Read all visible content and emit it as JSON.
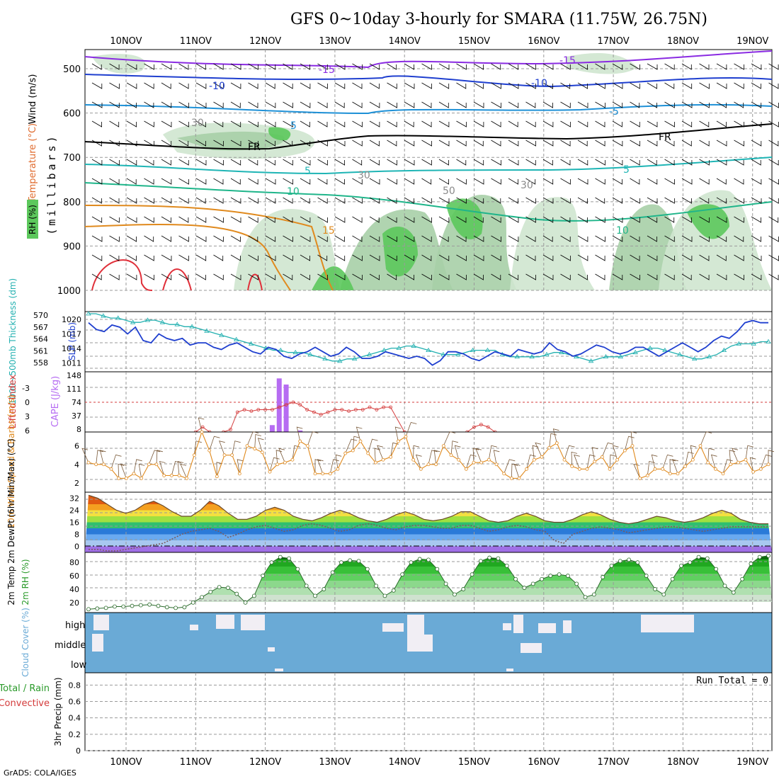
{
  "title": "GFS 0~10day 3-hourly for SMARA (11.75W, 26.75N)",
  "credit": "GrADS: COLA/IGES",
  "colors": {
    "grid": "#9a9a9a",
    "rh_fill": "#5cc85c",
    "slp": "#1f3fcf",
    "thickness": "#22b0b0",
    "lifted": "#d43b3b",
    "cape": "#b66cf2",
    "wind": "#e08a1e",
    "cloud": "#6aaad6",
    "cloud_gap": "#f1eef4"
  },
  "chart_data": [
    {
      "id": "upper",
      "type": "contour",
      "x": [
        "10NOV",
        "11NOV",
        "12NOV",
        "13NOV",
        "14NOV",
        "15NOV",
        "16NOV",
        "17NOV",
        "18NOV",
        "19NOV"
      ],
      "ylabel": "(millibars)",
      "y_ticks": [
        "500",
        "600",
        "700",
        "800",
        "900",
        "1000"
      ],
      "legend": [
        "Wind (m/s)",
        "Temperature (°C)",
        "RH (%)"
      ],
      "contour_labels": [
        "-15",
        "-15",
        "-10",
        "-10",
        "-5",
        "-5",
        "FR",
        "FR",
        "5",
        "5",
        "10",
        "10",
        "15",
        "30",
        "30",
        "30",
        "50"
      ]
    },
    {
      "id": "slp",
      "type": "line",
      "ylabel_left": "1000~500mb Thickness (dm)",
      "ylabel_right": "SLP (mb)",
      "y_ticks_left": [
        "570",
        "567",
        "564",
        "561",
        "558"
      ],
      "y_ticks_right": [
        "1020",
        "1017",
        "1014",
        "1011"
      ],
      "series": [
        {
          "name": "SLP",
          "ylim": [
            1009.5,
            1023
          ],
          "values": [
            1020.5,
            1019,
            1018.5,
            1020,
            1019.5,
            1018,
            1019.5,
            1016.5,
            1016,
            1018,
            1017,
            1016.5,
            1017,
            1015.5,
            1016,
            1016,
            1015,
            1014.5,
            1015.5,
            1016,
            1015,
            1014,
            1013.5,
            1015,
            1014.5,
            1013,
            1012.5,
            1013.5,
            1014,
            1015,
            1014,
            1013,
            1013.5,
            1015,
            1014,
            1012.5,
            1012.5,
            1013,
            1014,
            1013.5,
            1013,
            1012.5,
            1013,
            1012.5,
            1011,
            1012,
            1014,
            1014,
            1013.5,
            1012.5,
            1012,
            1013,
            1014,
            1013.5,
            1013,
            1014.5,
            1014,
            1013.5,
            1014,
            1016,
            1014.5,
            1014,
            1013,
            1013.5,
            1014.5,
            1015.5,
            1015,
            1014,
            1013.5,
            1014,
            1015,
            1015,
            1014,
            1013,
            1014,
            1015,
            1016,
            1015,
            1014,
            1015,
            1016.5,
            1017.5,
            1017,
            1018.5,
            1020.5,
            1021,
            1020.5,
            1020.5
          ]
        },
        {
          "name": "Thickness",
          "ylim": [
            557,
            571
          ],
          "values": [
            570.5,
            570.5,
            570,
            569.5,
            569.5,
            569,
            568.5,
            568.5,
            569,
            569,
            568.5,
            568,
            568,
            567.5,
            567.5,
            567,
            566.5,
            566,
            565.5,
            565,
            564.5,
            564,
            563.5,
            563,
            562.5,
            562,
            562,
            561.5,
            561.5,
            561.5,
            561,
            560.5,
            560,
            559.5,
            559.5,
            560,
            560,
            560.5,
            561,
            561.5,
            562,
            562.5,
            562.5,
            563,
            563,
            562.5,
            562,
            561.5,
            561,
            561,
            561,
            561.5,
            562,
            562,
            562,
            562,
            561,
            560.5,
            560.5,
            560.5,
            560.5,
            560.5,
            561,
            561.5,
            561.5,
            561,
            560.5,
            560,
            559.5,
            560,
            560.5,
            560.5,
            560.5,
            561,
            561.5,
            562,
            562.5,
            562.5,
            562,
            561.5,
            561,
            560.5,
            560,
            560,
            560.5,
            561,
            562,
            563,
            563.5,
            563.5,
            563.5,
            564,
            564
          ]
        }
      ]
    },
    {
      "id": "cape",
      "type": "bar+line",
      "ylabel_left": "Lifted Index",
      "ylabel_right": "CAPE (J/kg)",
      "y_ticks_left": [
        "-3",
        "0",
        "3",
        "6"
      ],
      "y_ticks_right": [
        "148",
        "111",
        "74",
        "37",
        "8"
      ],
      "cape_bars": {
        "ylim": [
          0,
          148
        ],
        "x_days": [
          2.1,
          2.2,
          2.3,
          2.5
        ],
        "values": [
          18,
          140,
          124,
          4
        ]
      },
      "lifted_index": {
        "ylim": [
          -6,
          6
        ],
        "x_days": [
          1.0,
          1.1,
          1.2,
          1.4,
          1.5,
          1.6,
          1.7,
          1.8,
          1.9,
          2.0,
          2.1,
          2.2,
          2.3,
          2.4,
          2.5,
          2.6,
          2.7,
          2.8,
          2.9,
          3.0,
          3.1,
          3.2,
          3.3,
          3.4,
          3.5,
          3.6,
          3.7,
          3.8,
          4.0,
          4.9,
          5.0,
          5.1,
          5.2,
          5.3
        ],
        "values": [
          6,
          5,
          6,
          6,
          5.5,
          2,
          1.5,
          1.8,
          1.5,
          1.5,
          1.5,
          1,
          0.5,
          0,
          0.5,
          1.5,
          2,
          2.5,
          2,
          1.5,
          1.5,
          1.8,
          1.5,
          1.5,
          1,
          1.5,
          1,
          1,
          6,
          6,
          5,
          4.5,
          5,
          6
        ]
      }
    },
    {
      "id": "wind10m",
      "type": "line",
      "ylabel": "10m Wind Speed & Barbs (m/s)",
      "y_ticks": [
        "2",
        "4",
        "6"
      ],
      "ylim": [
        1,
        7.5
      ],
      "values": [
        4.2,
        4,
        4,
        3.5,
        2.5,
        2.5,
        3,
        2.5,
        4,
        4,
        2.8,
        2.8,
        2.8,
        2.5,
        5,
        7.5,
        5.5,
        2.7,
        5,
        5,
        3,
        6,
        5.7,
        5.3,
        3.2,
        4,
        4.2,
        4.5,
        6.5,
        6,
        3,
        3,
        3,
        3.5,
        5.2,
        5.5,
        6.5,
        5.2,
        4.2,
        4.5,
        4.8,
        6.5,
        7,
        4.5,
        3.5,
        4,
        4,
        6,
        5,
        4.5,
        3.5,
        4.2,
        4.2,
        4.5,
        4,
        3,
        2.5,
        2.5,
        3.5,
        4.5,
        4.8,
        5.8,
        6.3,
        4.5,
        3.8,
        3.5,
        3.5,
        4.3,
        4.8,
        3.5,
        4.5,
        5.5,
        6,
        2.5,
        2.8,
        3.5,
        3.5,
        3,
        3,
        3.8,
        4.5,
        6,
        4.2,
        3.5,
        3,
        4,
        4.2,
        4.5,
        3.2,
        3.5,
        4
      ]
    },
    {
      "id": "temp",
      "type": "area",
      "ylabel": "2m Temp 2m DewPt (6hr Min/Max) (°C)",
      "y_ticks": [
        "0",
        "8",
        "16",
        "24",
        "32"
      ],
      "ylim": [
        -4,
        36
      ],
      "temp": [
        34,
        32,
        28,
        24,
        22,
        24,
        28,
        30,
        27,
        23,
        20,
        20,
        24,
        30,
        27,
        22,
        18,
        18,
        20,
        24,
        26,
        24,
        20,
        18,
        17,
        19,
        22,
        24,
        22,
        19,
        17,
        16,
        18,
        21,
        23,
        21,
        18,
        17,
        18,
        20,
        23,
        23,
        20,
        17,
        16,
        17,
        20,
        22,
        20,
        17,
        16,
        16,
        18,
        21,
        23,
        21,
        18,
        16,
        15,
        16,
        18,
        20,
        19,
        17,
        16,
        17,
        19,
        22,
        24,
        22,
        18,
        16,
        15,
        15
      ],
      "dewpt": [
        -2,
        -2,
        -3,
        -3,
        -2,
        -1,
        0,
        1,
        2,
        5,
        8,
        10,
        11,
        12,
        10,
        6,
        8,
        11,
        13,
        14,
        12,
        10,
        11,
        14,
        15,
        14,
        12,
        10,
        11,
        14,
        15,
        14,
        12,
        11,
        13,
        14,
        14,
        13,
        12,
        12,
        14,
        14,
        12,
        10,
        11,
        13,
        14,
        13,
        11,
        10,
        4,
        2,
        8,
        10,
        12,
        13,
        12,
        11,
        9,
        10,
        11,
        12,
        13,
        13,
        12,
        11,
        10,
        11,
        12,
        13,
        13,
        13,
        13,
        13
      ]
    },
    {
      "id": "rh2m",
      "type": "area",
      "ylabel": "2m RH (%)",
      "y_ticks": [
        "20",
        "40",
        "60",
        "80"
      ],
      "ylim": [
        5,
        95
      ],
      "values": [
        10,
        11,
        12,
        14,
        14,
        15,
        16,
        17,
        15,
        13,
        12,
        13,
        20,
        28,
        36,
        43,
        42,
        33,
        20,
        30,
        60,
        80,
        88,
        86,
        70,
        45,
        30,
        40,
        65,
        80,
        83,
        82,
        70,
        45,
        30,
        38,
        62,
        80,
        85,
        84,
        70,
        48,
        32,
        40,
        62,
        82,
        87,
        86,
        75,
        55,
        42,
        48,
        55,
        60,
        62,
        60,
        48,
        28,
        32,
        58,
        75,
        82,
        84,
        80,
        60,
        40,
        32,
        55,
        75,
        80,
        88,
        86,
        70,
        45,
        35,
        55,
        78,
        88,
        90
      ]
    },
    {
      "id": "cloud",
      "type": "heatmap",
      "ylabel": "Cloud Cover (%)",
      "levels": [
        "high",
        "middle",
        "low"
      ]
    },
    {
      "id": "precip",
      "type": "bar",
      "ylabel": "3hr Precip (mm)",
      "legend": [
        "Total / Rain",
        "Convective"
      ],
      "run_total": "Run Total = 0",
      "y_ticks": [
        "0",
        "0.2",
        "0.4",
        "0.6",
        "0.8"
      ],
      "ylim": [
        0,
        0.95
      ],
      "values": []
    }
  ]
}
